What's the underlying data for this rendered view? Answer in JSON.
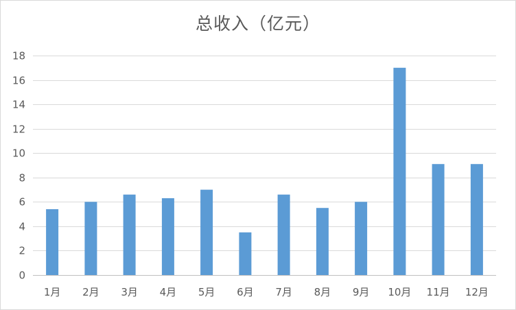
{
  "chart_data": {
    "type": "bar",
    "title": "总收入（亿元）",
    "xlabel": "",
    "ylabel": "",
    "categories": [
      "1月",
      "2月",
      "3月",
      "4月",
      "5月",
      "6月",
      "7月",
      "8月",
      "9月",
      "10月",
      "11月",
      "12月"
    ],
    "series": [
      {
        "values": [
          5.4,
          6.0,
          6.6,
          6.3,
          7.0,
          3.5,
          6.6,
          5.5,
          6.0,
          17.0,
          9.1,
          9.1
        ]
      }
    ],
    "ylim": [
      0,
      18
    ],
    "yticks": [
      0,
      2,
      4,
      6,
      8,
      10,
      12,
      14,
      16,
      18
    ],
    "grid": true,
    "legend": "none",
    "colors": {
      "bar": "#5b9bd5",
      "grid": "#d9d9d9",
      "text": "#595959"
    }
  }
}
